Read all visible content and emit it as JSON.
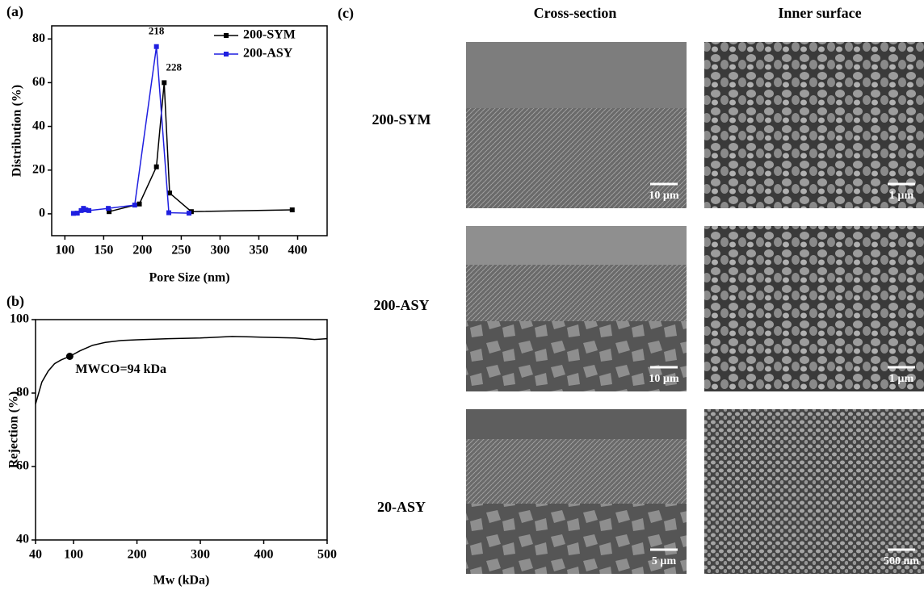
{
  "chart_data": [
    {
      "type": "line",
      "panel_label": "(a)",
      "xlabel": "Pore Size (nm)",
      "ylabel": "Distribution (%)",
      "xlim": [
        83,
        438
      ],
      "ylim": [
        -10,
        86
      ],
      "xticks": [
        100,
        150,
        200,
        250,
        300,
        350,
        400
      ],
      "yticks": [
        0,
        20,
        40,
        60,
        80
      ],
      "markers": true,
      "peak_labels": true,
      "legend": "upper right",
      "series": [
        {
          "name": "200-SYM",
          "color": "#000000",
          "x": [
            157,
            196,
            218,
            228,
            235,
            263,
            393
          ],
          "values": [
            1,
            4.5,
            21.5,
            60,
            9.5,
            1,
            1.8
          ]
        },
        {
          "name": "200-ASY",
          "color": "#1f1fe0",
          "x": [
            111,
            116,
            121,
            124,
            127,
            131,
            156,
            190,
            218,
            234,
            260
          ],
          "values": [
            0.2,
            0.3,
            1.5,
            2.5,
            1.8,
            1.5,
            2.5,
            4,
            76.5,
            0.5,
            0.3
          ]
        }
      ]
    },
    {
      "type": "line",
      "panel_label": "(b)",
      "xlabel": "Mw (kDa)",
      "ylabel": "Rejection (%)",
      "xlim": [
        40,
        500
      ],
      "ylim": [
        40,
        100
      ],
      "xticks": [
        40,
        100,
        200,
        300,
        400,
        500
      ],
      "yticks": [
        40,
        60,
        80,
        100
      ],
      "markers": false,
      "series": [
        {
          "color": "#000000",
          "x": [
            40,
            45,
            50,
            60,
            70,
            80,
            94,
            110,
            130,
            150,
            175,
            200,
            250,
            300,
            350,
            380,
            400,
            450,
            480,
            500
          ],
          "values": [
            77,
            80,
            83,
            86,
            88,
            89,
            90,
            91.5,
            93,
            93.8,
            94.3,
            94.5,
            94.8,
            95,
            95.4,
            95.3,
            95.2,
            95,
            94.6,
            94.8
          ]
        }
      ],
      "point_annotation": {
        "label": "MWCO=94 kDa",
        "x": 94,
        "y": 90
      }
    }
  ],
  "panel_c": {
    "label": "(c)",
    "columns": [
      "Cross-section",
      "Inner surface"
    ],
    "rows": [
      {
        "label": "200-SYM",
        "scale_bars": [
          "10 µm",
          "1 µm"
        ]
      },
      {
        "label": "200-ASY",
        "scale_bars": [
          "10 µm",
          "1 µm"
        ]
      },
      {
        "label": "20-ASY",
        "scale_bars": [
          "5 µm",
          "500 nm"
        ]
      }
    ]
  }
}
